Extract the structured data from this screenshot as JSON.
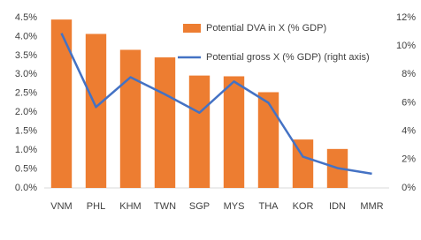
{
  "chart_data": {
    "type": "bar",
    "categories": [
      "VNM",
      "PHL",
      "KHM",
      "TWN",
      "SGP",
      "MYS",
      "THA",
      "KOR",
      "IDN",
      "MMR"
    ],
    "series": [
      {
        "name": "Potential DVA in X (% GDP)",
        "type": "bar",
        "color": "#ED7D31",
        "values": [
          4.45,
          4.07,
          3.65,
          3.45,
          2.97,
          2.95,
          2.53,
          1.28,
          1.03,
          0
        ]
      },
      {
        "name": "Potential gross X (% GDP) (right axis)",
        "type": "line",
        "axis": "y2",
        "color": "#4472C4",
        "values": [
          10.9,
          5.7,
          7.8,
          6.6,
          5.3,
          7.5,
          6.0,
          2.2,
          1.4,
          1.0
        ]
      }
    ],
    "ylim": [
      0,
      4.5
    ],
    "yticks": [
      {
        "value": 0,
        "label": "0.0%"
      },
      {
        "value": 0.5,
        "label": "0.5%"
      },
      {
        "value": 1,
        "label": "1.0%"
      },
      {
        "value": 1.5,
        "label": "1.5%"
      },
      {
        "value": 2,
        "label": "2.0%"
      },
      {
        "value": 2.5,
        "label": "2.5%"
      },
      {
        "value": 3,
        "label": "3.0%"
      },
      {
        "value": 3.5,
        "label": "3.5%"
      },
      {
        "value": 4,
        "label": "4.0%"
      },
      {
        "value": 4.5,
        "label": "4.5%"
      }
    ],
    "y2lim": [
      0,
      12
    ],
    "y2ticks": [
      {
        "value": 0,
        "label": "0%"
      },
      {
        "value": 2,
        "label": "2%"
      },
      {
        "value": 4,
        "label": "4%"
      },
      {
        "value": 6,
        "label": "6%"
      },
      {
        "value": 8,
        "label": "8%"
      },
      {
        "value": 10,
        "label": "10%"
      },
      {
        "value": 12,
        "label": "12%"
      }
    ],
    "grid": false,
    "legend": "top-right"
  }
}
